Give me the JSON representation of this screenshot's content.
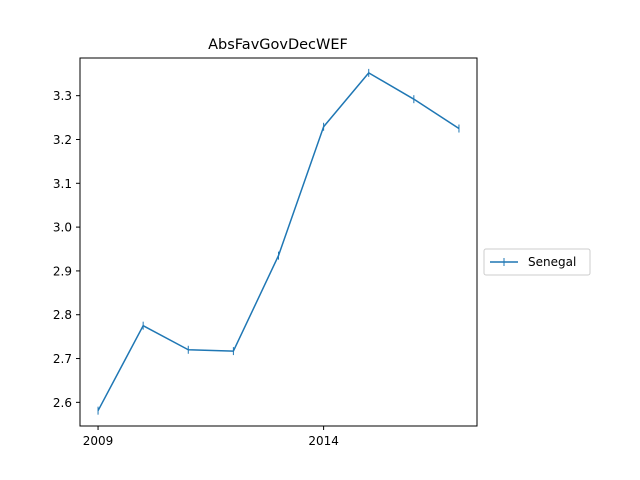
{
  "chart_data": {
    "type": "line",
    "title": "AbsFavGovDecWEF",
    "xlabel": "",
    "ylabel": "",
    "x": [
      2009,
      2010,
      2011,
      2012,
      2013,
      2014,
      2015,
      2016,
      2017
    ],
    "xlim": [
      2008.6,
      2017.4
    ],
    "ylim": [
      2.546,
      3.386
    ],
    "xticks": [
      2009,
      2014
    ],
    "yticks": [
      2.6,
      2.7,
      2.8,
      2.9,
      3.0,
      3.1,
      3.2,
      3.3
    ],
    "ytick_labels": [
      "2.6",
      "2.7",
      "2.8",
      "2.9",
      "3.0",
      "3.1",
      "3.2",
      "3.3"
    ],
    "series": [
      {
        "name": "Senegal",
        "color": "#1f77b4",
        "marker": "|",
        "values": [
          2.581,
          2.775,
          2.72,
          2.717,
          2.935,
          3.229,
          3.352,
          3.292,
          3.225
        ]
      }
    ],
    "grid": false,
    "legend_position": "outside-right"
  }
}
